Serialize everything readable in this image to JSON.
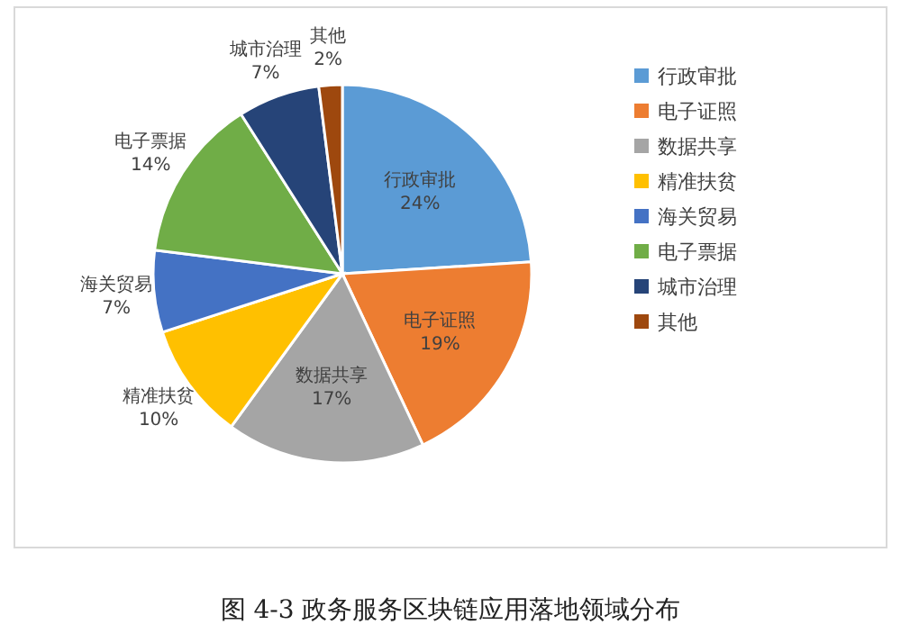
{
  "chart_data": {
    "type": "pie",
    "title": "图 4-3   政务服务区块链应用落地领域分布",
    "categories": [
      "行政审批",
      "电子证照",
      "数据共享",
      "精准扶贫",
      "海关贸易",
      "电子票据",
      "城市治理",
      "其他"
    ],
    "values": [
      24,
      19,
      17,
      10,
      7,
      14,
      7,
      2
    ],
    "colors": [
      "#5b9bd5",
      "#ed7d31",
      "#a5a5a5",
      "#ffc000",
      "#4472c4",
      "#70ad47",
      "#264478",
      "#9e480e"
    ],
    "value_labels": [
      "24%",
      "19%",
      "17%",
      "10%",
      "7%",
      "14%",
      "7%",
      "2%"
    ],
    "legend": "right"
  }
}
